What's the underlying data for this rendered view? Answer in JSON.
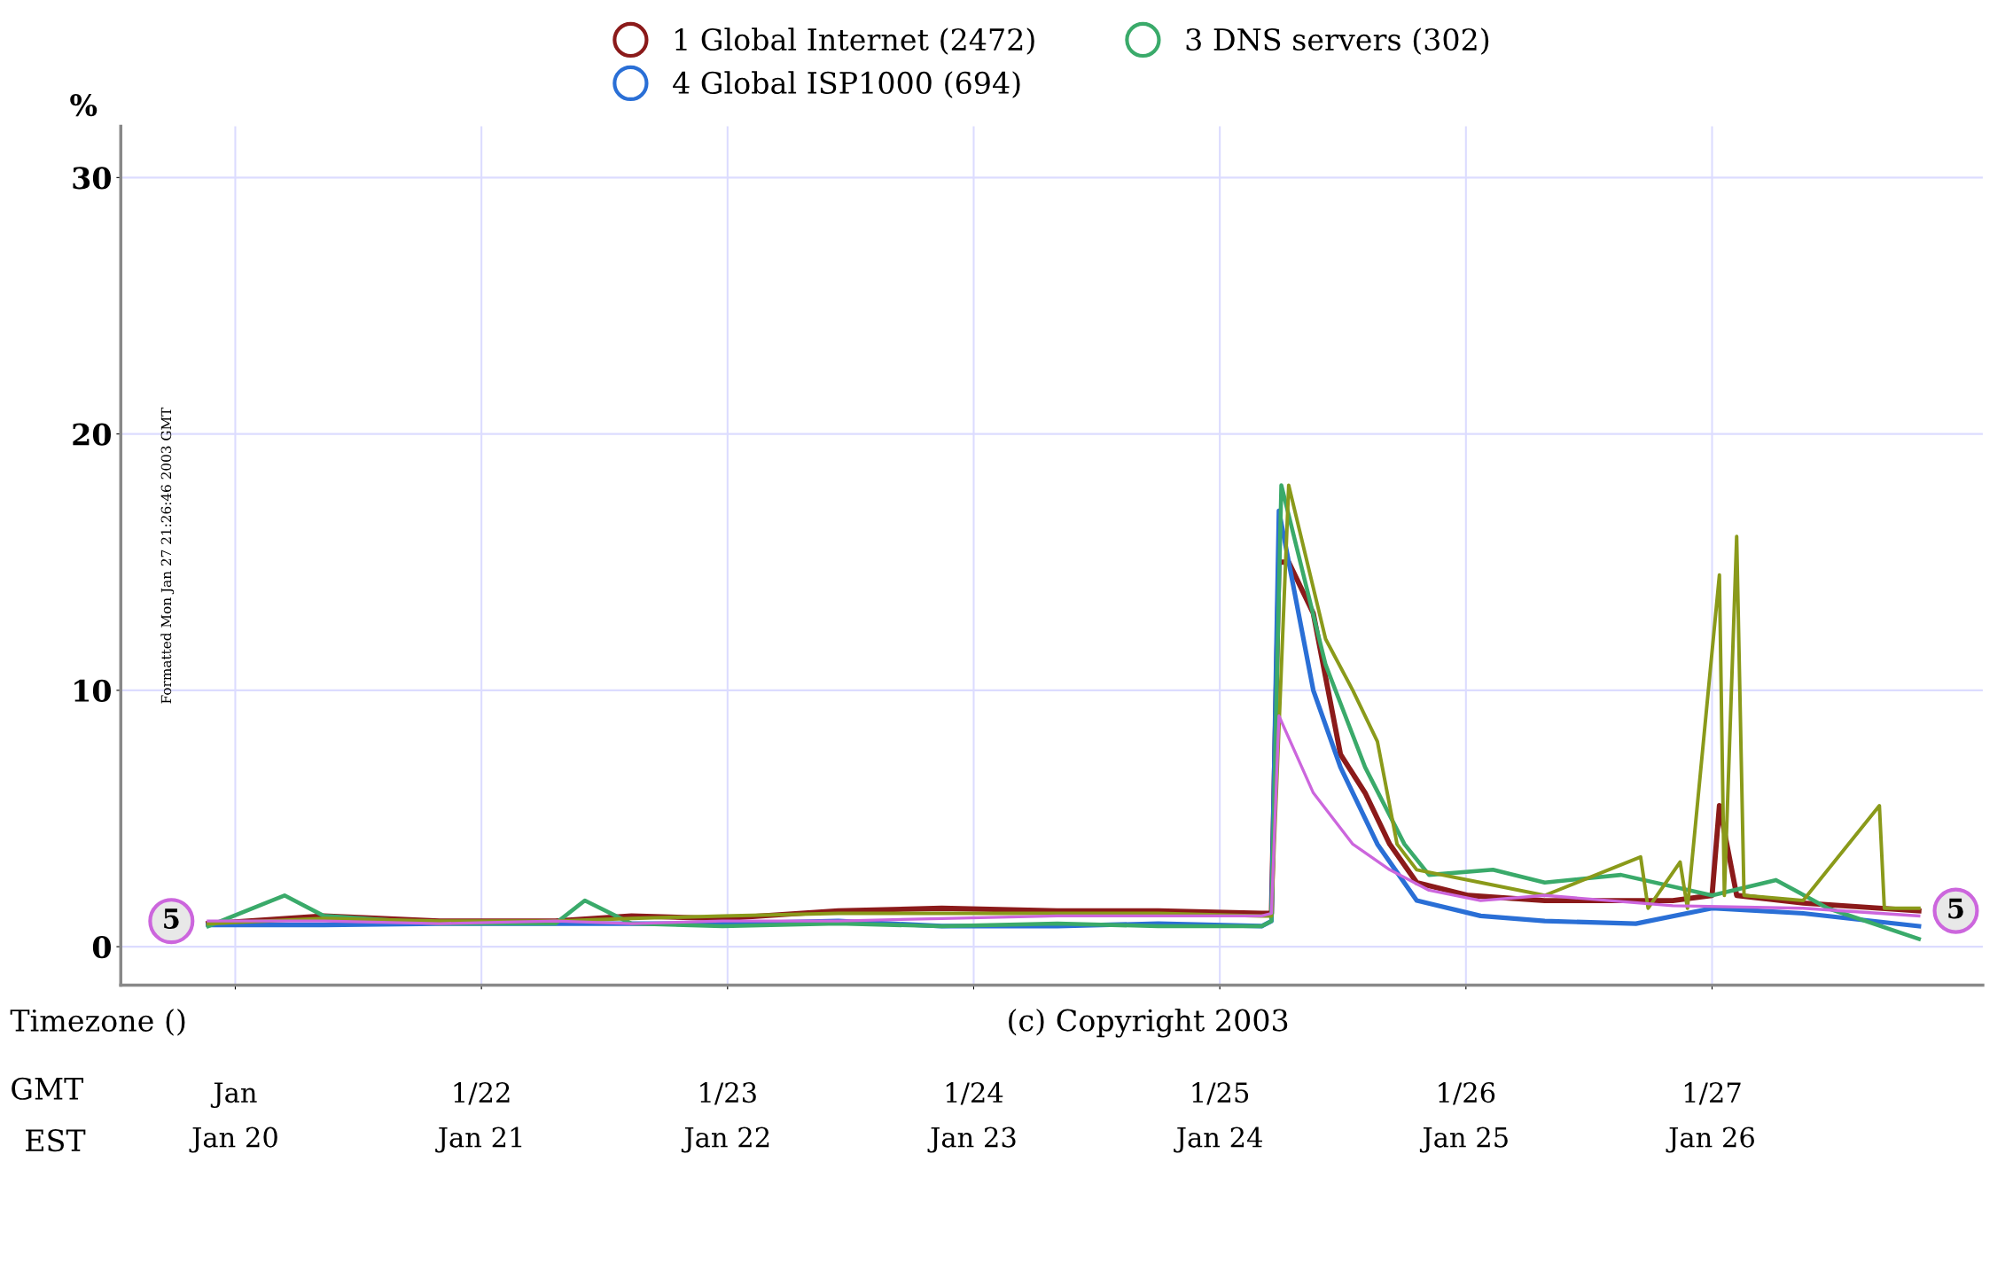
{
  "chart_data": {
    "type": "line",
    "ylabel": "%",
    "xlim": [
      "2003-01-20T12:50",
      "2003-01-28T02:24"
    ],
    "ylim": [
      -1.5,
      32
    ],
    "xticks": [
      {
        "value": "2003-01-21",
        "label": "Jan\nJan 20"
      },
      {
        "value": "2003-01-22",
        "label": "1/22\nJan 21"
      },
      {
        "value": "2003-01-23",
        "label": "1/23\nJan 22"
      },
      {
        "value": "2003-01-24",
        "label": "1/24\nJan 23"
      },
      {
        "value": "2003-01-25",
        "label": "1/25\nJan 24"
      },
      {
        "value": "2003-01-26",
        "label": "1/26\nJan 25"
      },
      {
        "value": "2003-01-27",
        "label": "1/27\nJan 26"
      }
    ],
    "yticks": [
      0,
      10,
      20,
      30
    ],
    "grid": true,
    "legend": "top",
    "marker": "none",
    "line_style": "solid",
    "series": [
      {
        "name": "1 Global Internet (2472)",
        "color": "#8b1a1a",
        "x": [
          "2003-01-20T21:22",
          "2003-01-21T08:38",
          "2003-01-21T19:55",
          "2003-01-22T07:12",
          "2003-01-22T14:38",
          "2003-01-22T23:31",
          "2003-01-23T10:48",
          "2003-01-23T20:53",
          "2003-01-24T08:10",
          "2003-01-24T18:00",
          "2003-01-25T04:05",
          "2003-01-25T05:02",
          "2003-01-25T05:46",
          "2003-01-25T06:43",
          "2003-01-25T09:07",
          "2003-01-25T11:46",
          "2003-01-25T14:10",
          "2003-01-25T16:34",
          "2003-01-25T19:12",
          "2003-01-26T00:14",
          "2003-01-26T07:41",
          "2003-01-26T20:10",
          "2003-01-27T00:00",
          "2003-01-27T00:43",
          "2003-01-27T02:24",
          "2003-01-27T08:53",
          "2003-01-27T20:10"
        ],
        "values": [
          0.9,
          1.2,
          1.0,
          1.0,
          1.2,
          1.1,
          1.4,
          1.5,
          1.4,
          1.4,
          1.3,
          1.3,
          15,
          15,
          13,
          7.5,
          6,
          4,
          2.5,
          2.0,
          1.8,
          1.8,
          2.0,
          5.5,
          2.0,
          1.7,
          1.4
        ]
      },
      {
        "name": "4 Global ISP1000 (694)",
        "color": "#2a6fd6",
        "x": [
          "2003-01-20T21:22",
          "2003-01-21T08:38",
          "2003-01-21T19:55",
          "2003-01-22T07:12",
          "2003-01-22T14:38",
          "2003-01-22T23:31",
          "2003-01-23T10:48",
          "2003-01-23T20:53",
          "2003-01-24T08:10",
          "2003-01-24T18:00",
          "2003-01-25T04:05",
          "2003-01-25T05:02",
          "2003-01-25T05:46",
          "2003-01-25T09:07",
          "2003-01-25T11:46",
          "2003-01-25T15:22",
          "2003-01-25T19:12",
          "2003-01-26T01:26",
          "2003-01-26T07:41",
          "2003-01-26T16:34",
          "2003-01-27T00:00",
          "2003-01-27T08:53",
          "2003-01-27T20:10"
        ],
        "values": [
          0.85,
          0.85,
          0.9,
          0.9,
          0.9,
          0.9,
          1.0,
          0.8,
          0.8,
          0.9,
          0.8,
          1.0,
          17,
          10,
          7,
          4,
          1.8,
          1.2,
          1.0,
          0.9,
          1.5,
          1.3,
          0.8
        ]
      },
      {
        "name": "3 DNS servers (302)",
        "color": "#3aaa6a",
        "x": [
          "2003-01-20T21:22",
          "2003-01-21T04:48",
          "2003-01-21T08:38",
          "2003-01-21T19:55",
          "2003-01-22T07:12",
          "2003-01-22T10:05",
          "2003-01-22T14:38",
          "2003-01-22T23:31",
          "2003-01-23T10:48",
          "2003-01-23T20:53",
          "2003-01-24T08:10",
          "2003-01-24T18:00",
          "2003-01-25T04:05",
          "2003-01-25T05:02",
          "2003-01-25T06:00",
          "2003-01-25T10:19",
          "2003-01-25T14:10",
          "2003-01-25T18:00",
          "2003-01-25T20:24",
          "2003-01-26T02:38",
          "2003-01-26T07:41",
          "2003-01-26T15:07",
          "2003-01-27T00:00",
          "2003-01-27T06:14",
          "2003-01-27T11:17",
          "2003-01-27T20:10"
        ],
        "values": [
          0.8,
          2.0,
          1.2,
          0.9,
          0.9,
          1.8,
          0.9,
          0.8,
          0.9,
          0.8,
          0.9,
          0.8,
          0.8,
          1.0,
          18,
          11,
          7,
          4,
          2.8,
          3.0,
          2.5,
          2.8,
          2.0,
          2.6,
          1.5,
          0.3
        ]
      },
      {
        "color": "#8a9a1a",
        "x": [
          "2003-01-20T21:22",
          "2003-01-21T08:38",
          "2003-01-21T19:55",
          "2003-01-22T07:12",
          "2003-01-22T14:38",
          "2003-01-22T23:31",
          "2003-01-23T10:48",
          "2003-01-23T20:53",
          "2003-01-24T08:10",
          "2003-01-24T18:00",
          "2003-01-25T04:05",
          "2003-01-25T05:02",
          "2003-01-25T06:43",
          "2003-01-25T10:19",
          "2003-01-25T12:58",
          "2003-01-25T15:22",
          "2003-01-25T17:17",
          "2003-01-25T19:12",
          "2003-01-26T01:26",
          "2003-01-26T07:41",
          "2003-01-26T17:02",
          "2003-01-26T17:46",
          "2003-01-26T20:53",
          "2003-01-26T21:36",
          "2003-01-27T00:43",
          "2003-01-27T01:12",
          "2003-01-27T02:24",
          "2003-01-27T03:07",
          "2003-01-27T08:53",
          "2003-01-27T16:19",
          "2003-01-27T16:48",
          "2003-01-27T20:10"
        ],
        "values": [
          0.9,
          1.1,
          1.0,
          1.0,
          1.1,
          1.2,
          1.3,
          1.3,
          1.3,
          1.3,
          1.2,
          1.2,
          18,
          12,
          10,
          8,
          4,
          3,
          2.5,
          2.0,
          3.5,
          1.5,
          3.3,
          1.5,
          14.5,
          2.0,
          16,
          2.0,
          1.8,
          5.5,
          1.5,
          1.5
        ]
      },
      {
        "color": "#cc66dd",
        "x": [
          "2003-01-20T21:22",
          "2003-01-21T08:38",
          "2003-01-21T19:55",
          "2003-01-22T07:12",
          "2003-01-22T14:38",
          "2003-01-22T23:31",
          "2003-01-23T10:48",
          "2003-01-23T20:53",
          "2003-01-24T08:10",
          "2003-01-24T18:00",
          "2003-01-25T04:05",
          "2003-01-25T05:02",
          "2003-01-25T05:46",
          "2003-01-25T09:07",
          "2003-01-25T12:58",
          "2003-01-25T16:34",
          "2003-01-25T20:24",
          "2003-01-26T01:26",
          "2003-01-26T07:41",
          "2003-01-26T20:10",
          "2003-01-27T08:53",
          "2003-01-27T20:10"
        ],
        "values": [
          1.0,
          1.0,
          0.9,
          1.0,
          0.9,
          1.0,
          1.0,
          1.1,
          1.2,
          1.2,
          1.2,
          1.3,
          9,
          6,
          4,
          3,
          2.2,
          1.8,
          2.0,
          1.6,
          1.5,
          1.2
        ]
      }
    ],
    "annotations": [
      {
        "text": "5",
        "x": "2003-01-20T21:22",
        "y": 1.0
      },
      {
        "text": "5",
        "x": "2003-01-27T20:10",
        "y": 1.4
      },
      "Formatted Mon Jan 27 21:26:46 2003 GMT",
      "(c) Copyright 2003",
      "Timezone ()",
      "GMT",
      "EST"
    ]
  }
}
